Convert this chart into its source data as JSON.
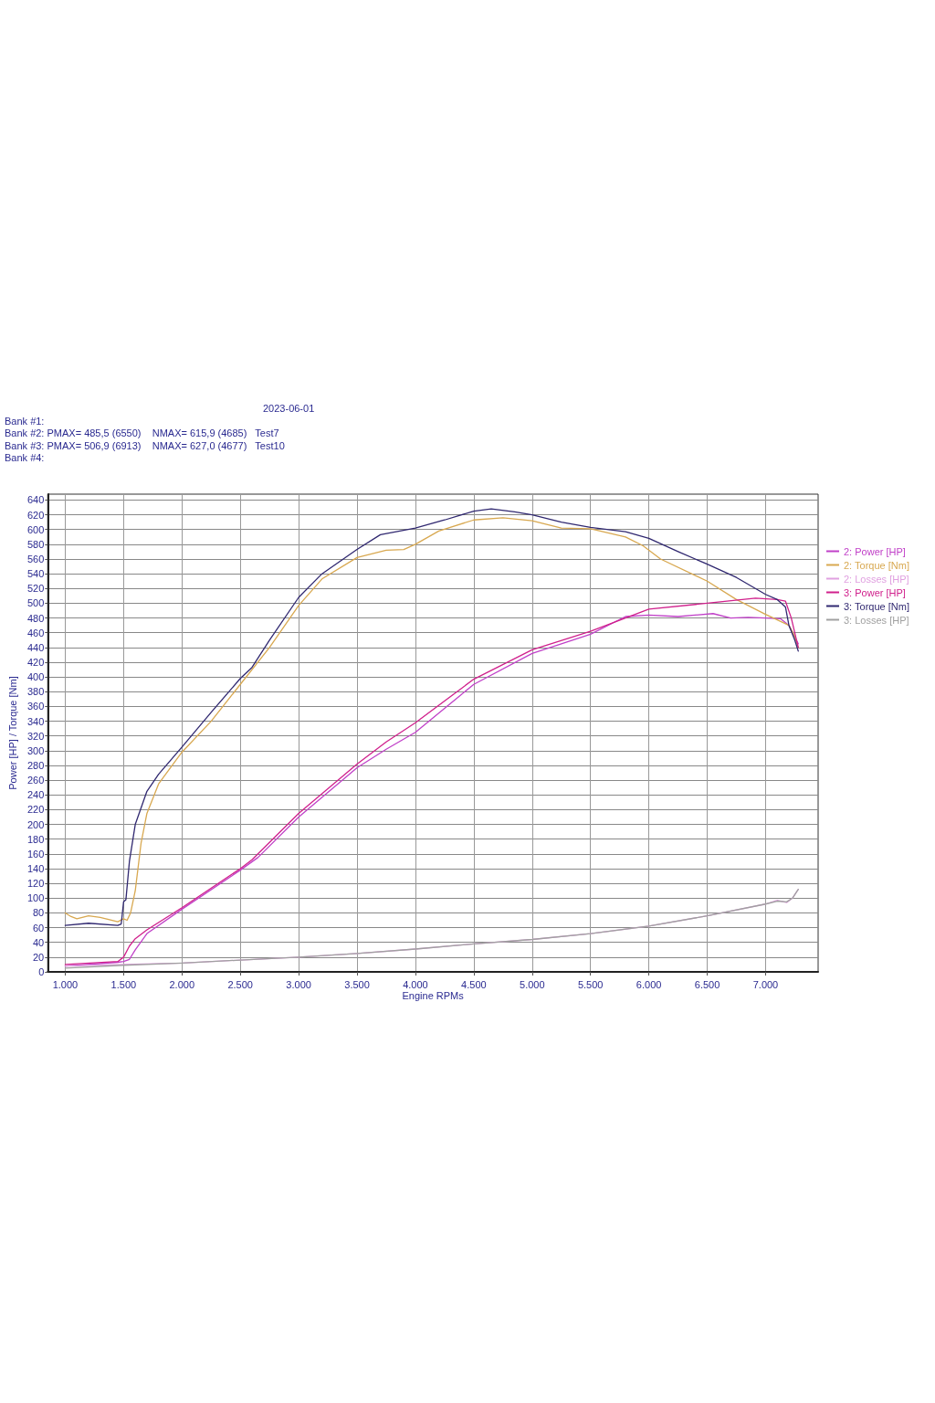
{
  "chart_data": {
    "type": "line",
    "annotations": [
      "2023-06-01",
      "Bank #1:",
      "Bank #2: PMAX= 485,5 (6550)    NMAX= 615,9 (4685)   Test7",
      "Bank #3: PMAX= 506,9 (6913)    NMAX= 627,0 (4677)   Test10",
      "Bank #4:"
    ],
    "xlabel": "Engine RPMs",
    "ylabel": "Power [HP] / Torque [Nm]",
    "xlim": [
      850,
      7450
    ],
    "ylim": [
      0,
      648
    ],
    "xticks": [
      {
        "value": 1000,
        "label": "1.000"
      },
      {
        "value": 1500,
        "label": "1.500"
      },
      {
        "value": 2000,
        "label": "2.000"
      },
      {
        "value": 2500,
        "label": "2.500"
      },
      {
        "value": 3000,
        "label": "3.000"
      },
      {
        "value": 3500,
        "label": "3.500"
      },
      {
        "value": 4000,
        "label": "4.000"
      },
      {
        "value": 4500,
        "label": "4.500"
      },
      {
        "value": 5000,
        "label": "5.000"
      },
      {
        "value": 5500,
        "label": "5.500"
      },
      {
        "value": 6000,
        "label": "6.000"
      },
      {
        "value": 6500,
        "label": "6.500"
      },
      {
        "value": 7000,
        "label": "7.000"
      }
    ],
    "yticks": [
      0,
      20,
      40,
      60,
      80,
      100,
      120,
      140,
      160,
      180,
      200,
      220,
      240,
      260,
      280,
      300,
      320,
      340,
      360,
      380,
      400,
      420,
      440,
      460,
      480,
      500,
      520,
      540,
      560,
      580,
      600,
      620,
      640
    ],
    "grid": true,
    "legend": "right",
    "marker": "none",
    "line_style": "solid",
    "series": [
      {
        "name": "2: Power [HP]",
        "color": "#c040c8",
        "x": [
          1000,
          1450,
          1500,
          1550,
          1600,
          1700,
          2000,
          2500,
          2650,
          3000,
          3500,
          3750,
          4000,
          4500,
          5000,
          5500,
          5800,
          6000,
          6250,
          6550,
          6700,
          6850,
          7000,
          7130,
          7200,
          7280
        ],
        "values": [
          8,
          13,
          14,
          17,
          30,
          52,
          85,
          138,
          155,
          210,
          277,
          302,
          325,
          390,
          432,
          458,
          482,
          484,
          482,
          486,
          480,
          481,
          480,
          479,
          470,
          445
        ]
      },
      {
        "name": "2: Torque [Nm]",
        "color": "#d8a850",
        "x": [
          1000,
          1050,
          1100,
          1200,
          1300,
          1450,
          1500,
          1530,
          1560,
          1600,
          1650,
          1700,
          1800,
          2000,
          2250,
          2500,
          2750,
          3000,
          3200,
          3500,
          3750,
          3900,
          4000,
          4200,
          4500,
          4750,
          5000,
          5250,
          5500,
          5800,
          5950,
          6100,
          6500,
          6750,
          7000,
          7200,
          7250,
          7280
        ],
        "values": [
          80,
          75,
          72,
          76,
          74,
          68,
          72,
          70,
          80,
          110,
          175,
          215,
          255,
          298,
          340,
          390,
          440,
          497,
          533,
          562,
          572,
          573,
          580,
          598,
          613,
          616,
          612,
          602,
          601,
          590,
          578,
          560,
          530,
          505,
          485,
          470,
          455,
          440
        ]
      },
      {
        "name": "2: Losses [HP]",
        "color": "#e0a0e0",
        "x": [
          1000,
          1500,
          2000,
          2500,
          3000,
          3500,
          4000,
          4500,
          5000,
          5500,
          6000,
          6500,
          7000,
          7100,
          7180,
          7230,
          7280
        ],
        "values": [
          8,
          10,
          12,
          16,
          20,
          25,
          31,
          38,
          44,
          52,
          62,
          76,
          92,
          97,
          94,
          100,
          112
        ]
      },
      {
        "name": "3: Power [HP]",
        "color": "#d0208c",
        "x": [
          1000,
          1450,
          1500,
          1550,
          1600,
          1700,
          2000,
          2500,
          2600,
          3000,
          3500,
          3750,
          4000,
          4500,
          5000,
          5500,
          6000,
          6500,
          6800,
          6913,
          7100,
          7170,
          7220,
          7280
        ],
        "values": [
          10,
          14,
          20,
          35,
          45,
          57,
          87,
          140,
          152,
          215,
          282,
          312,
          338,
          397,
          437,
          462,
          492,
          500,
          505,
          507,
          505,
          503,
          480,
          440
        ]
      },
      {
        "name": "3: Torque [Nm]",
        "color": "#302870",
        "x": [
          1000,
          1200,
          1450,
          1480,
          1500,
          1520,
          1550,
          1600,
          1700,
          1800,
          2000,
          2250,
          2500,
          2600,
          2750,
          3000,
          3200,
          3500,
          3700,
          4000,
          4250,
          4500,
          4650,
          4850,
          5000,
          5250,
          5500,
          5800,
          6000,
          6250,
          6500,
          6750,
          7000,
          7100,
          7170,
          7200,
          7250,
          7280
        ],
        "values": [
          63,
          66,
          63,
          65,
          95,
          98,
          150,
          200,
          245,
          268,
          305,
          352,
          398,
          413,
          450,
          508,
          540,
          573,
          593,
          602,
          613,
          625,
          628,
          624,
          620,
          610,
          603,
          597,
          588,
          570,
          553,
          535,
          512,
          505,
          495,
          470,
          450,
          435
        ]
      },
      {
        "name": "3: Losses [HP]",
        "color": "#a0a0a0",
        "x": [
          1000,
          1500,
          2000,
          2500,
          3000,
          3500,
          4000,
          4500,
          5000,
          5500,
          6000,
          6500,
          7000,
          7100,
          7180,
          7230,
          7280
        ],
        "values": [
          5,
          9,
          12,
          16,
          20,
          25,
          31,
          38,
          44,
          52,
          62,
          76,
          92,
          96,
          95,
          100,
          112
        ]
      }
    ]
  }
}
